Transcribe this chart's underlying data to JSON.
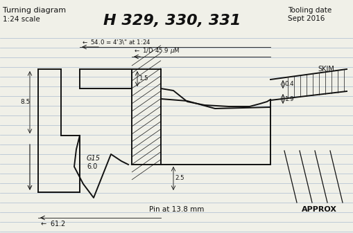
{
  "title": "H 329, 330, 331",
  "subtitle_left": "Turning diagram",
  "subtitle_scale": "1:24 scale",
  "tooling_date_line1": "Tooling date",
  "tooling_date_line2": "Sept 2016",
  "dim_54": "54.0 = 4'3\" at 1:24",
  "dim_45": "1/D 45.9 μM",
  "dim_0_4": "0.4",
  "dim_1_5": "1.5",
  "dim_1_9": "1.9",
  "dim_8_5": "8.5",
  "dim_6_0": "6.0",
  "dim_G15": "G15",
  "dim_2_5": "2.5",
  "dim_61_2": "61.2",
  "pin_label": "Pin at 13.8 mm",
  "approx_label": "APPROX",
  "skim_label": "SKIM",
  "bg_color": "#f0f0e8",
  "line_color": "#111111",
  "ruled_line_color": "#aabbd0"
}
